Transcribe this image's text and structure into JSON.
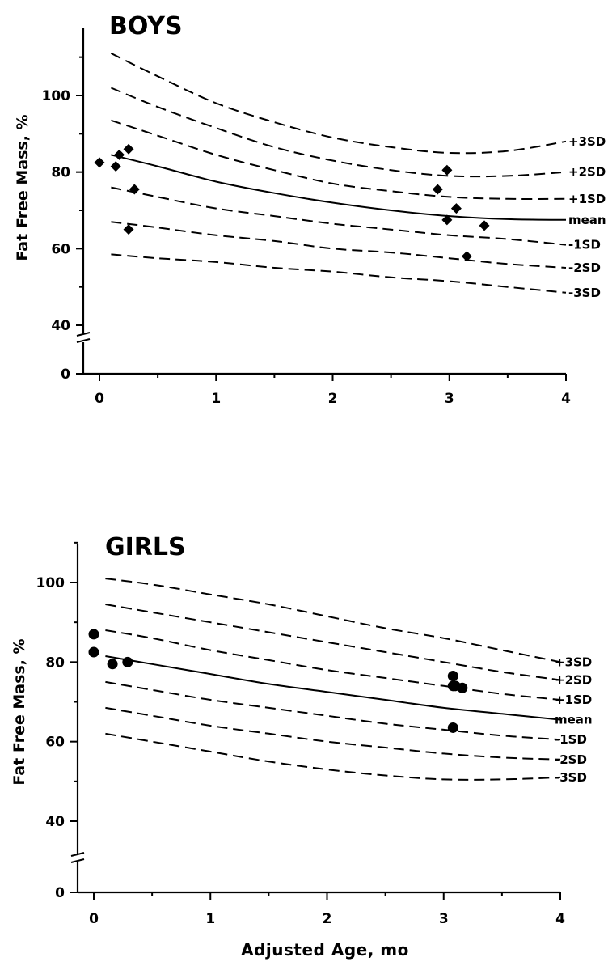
{
  "chart_data": [
    {
      "type": "scatter",
      "title": "BOYS",
      "xlabel": "",
      "ylabel": "Fat Free Mass, %",
      "xlim": [
        0,
        4
      ],
      "ylim": [
        0,
        110
      ],
      "y_axis_break": [
        0,
        40
      ],
      "x_ticks": [
        "0",
        "1",
        "2",
        "3",
        "4"
      ],
      "y_ticks": [
        "0",
        "40",
        "60",
        "80",
        "100"
      ],
      "curves": [
        {
          "name": "+3SD",
          "style": "dashed",
          "x": [
            0.1,
            0.5,
            1.0,
            1.5,
            2.0,
            2.5,
            3.0,
            3.5,
            4.0
          ],
          "y": [
            111,
            105,
            98,
            93,
            89,
            86.5,
            85,
            85.5,
            88
          ]
        },
        {
          "name": "+2SD",
          "style": "dashed",
          "x": [
            0.1,
            0.5,
            1.0,
            1.5,
            2.0,
            2.5,
            3.0,
            3.5,
            4.0
          ],
          "y": [
            102,
            97,
            91.5,
            86.5,
            83,
            80.5,
            79,
            79,
            80
          ]
        },
        {
          "name": "+1SD",
          "style": "dashed",
          "x": [
            0.1,
            0.5,
            1.0,
            1.5,
            2.0,
            2.5,
            3.0,
            3.5,
            4.0
          ],
          "y": [
            93.5,
            89.5,
            84.5,
            80.5,
            77,
            75,
            73.5,
            73,
            73
          ]
        },
        {
          "name": "mean",
          "style": "solid",
          "x": [
            0.1,
            0.5,
            1.0,
            1.5,
            2.0,
            2.5,
            3.0,
            3.5,
            4.0
          ],
          "y": [
            84.5,
            81.5,
            77.5,
            74.5,
            72,
            70,
            68.5,
            67.7,
            67.5
          ]
        },
        {
          "name": "-1SD",
          "style": "dashed",
          "x": [
            0.1,
            0.5,
            1.0,
            1.5,
            2.0,
            2.5,
            3.0,
            3.5,
            4.0
          ],
          "y": [
            76,
            73.5,
            70.5,
            68.5,
            66.5,
            65,
            63.5,
            62.5,
            61
          ]
        },
        {
          "name": "-2SD",
          "style": "dashed",
          "x": [
            0.1,
            0.5,
            1.0,
            1.5,
            2.0,
            2.5,
            3.0,
            3.5,
            4.0
          ],
          "y": [
            67,
            65.5,
            63.5,
            62,
            60,
            59,
            57.5,
            56,
            55
          ]
        },
        {
          "name": "-3SD",
          "style": "dashed",
          "x": [
            0.1,
            0.5,
            1.0,
            1.5,
            2.0,
            2.5,
            3.0,
            3.5,
            4.0
          ],
          "y": [
            58.5,
            57.5,
            56.5,
            55,
            54,
            52.5,
            51.5,
            50,
            48.5
          ]
        }
      ],
      "points": {
        "marker": "diamond",
        "x": [
          0.0,
          0.14,
          0.17,
          0.25,
          0.25,
          0.3,
          2.9,
          2.98,
          2.98,
          3.06,
          3.15,
          3.3
        ],
        "y": [
          82.5,
          81.5,
          84.5,
          86,
          65,
          75.5,
          75.5,
          80.5,
          67.5,
          70.5,
          58,
          66
        ]
      }
    },
    {
      "type": "scatter",
      "title": "GIRLS",
      "xlabel": "Adjusted Age, mo",
      "ylabel": "Fat Free Mass, %",
      "xlim": [
        0,
        4
      ],
      "ylim": [
        0,
        110
      ],
      "y_axis_break": [
        0,
        40
      ],
      "x_ticks": [
        "0",
        "1",
        "2",
        "3",
        "4"
      ],
      "y_ticks": [
        "0",
        "40",
        "60",
        "80",
        "100"
      ],
      "curves": [
        {
          "name": "+3SD",
          "style": "dashed",
          "x": [
            0.1,
            0.5,
            1.0,
            1.5,
            2.0,
            2.5,
            3.0,
            3.5,
            4.0
          ],
          "y": [
            101,
            99.5,
            97,
            94.5,
            91.5,
            88.5,
            86,
            83,
            80
          ]
        },
        {
          "name": "+2SD",
          "style": "dashed",
          "x": [
            0.1,
            0.5,
            1.0,
            1.5,
            2.0,
            2.5,
            3.0,
            3.5,
            4.0
          ],
          "y": [
            94.5,
            92.5,
            90,
            87.5,
            85,
            82.5,
            80,
            77.5,
            75.5
          ]
        },
        {
          "name": "+1SD",
          "style": "dashed",
          "x": [
            0.1,
            0.5,
            1.0,
            1.5,
            2.0,
            2.5,
            3.0,
            3.5,
            4.0
          ],
          "y": [
            88,
            86,
            83,
            80.5,
            78,
            76,
            74,
            72,
            70.5
          ]
        },
        {
          "name": "mean",
          "style": "solid",
          "x": [
            0.1,
            0.5,
            1.0,
            1.5,
            2.0,
            2.5,
            3.0,
            3.5,
            4.0
          ],
          "y": [
            81.5,
            79.5,
            77,
            74.5,
            72.5,
            70.5,
            68.5,
            67,
            65.5
          ]
        },
        {
          "name": "-1SD",
          "style": "dashed",
          "x": [
            0.1,
            0.5,
            1.0,
            1.5,
            2.0,
            2.5,
            3.0,
            3.5,
            4.0
          ],
          "y": [
            75,
            73,
            70.5,
            68.5,
            66.5,
            64.5,
            63,
            61.5,
            60.5
          ]
        },
        {
          "name": "-2SD",
          "style": "dashed",
          "x": [
            0.1,
            0.5,
            1.0,
            1.5,
            2.0,
            2.5,
            3.0,
            3.5,
            4.0
          ],
          "y": [
            68.5,
            66.5,
            64,
            62,
            60,
            58.5,
            57,
            56,
            55.5
          ]
        },
        {
          "name": "-3SD",
          "style": "dashed",
          "x": [
            0.1,
            0.5,
            1.0,
            1.5,
            2.0,
            2.5,
            3.0,
            3.5,
            4.0
          ],
          "y": [
            62,
            60,
            57.5,
            55,
            53,
            51.5,
            50.5,
            50.5,
            51
          ]
        }
      ],
      "points": {
        "marker": "circle",
        "x": [
          0.0,
          0.0,
          0.16,
          0.29,
          3.08,
          3.08,
          3.1,
          3.16,
          3.08
        ],
        "y": [
          87,
          82.5,
          79.5,
          80,
          76.5,
          74,
          74,
          73.5,
          63.5
        ]
      }
    }
  ]
}
